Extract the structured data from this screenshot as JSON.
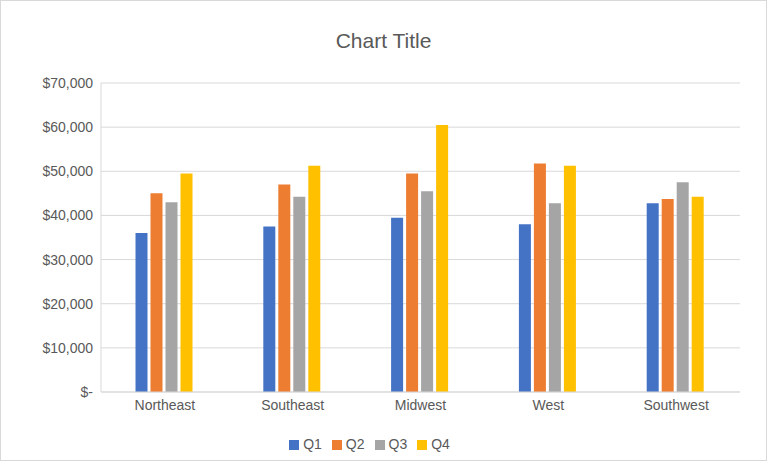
{
  "chart_data": {
    "type": "bar",
    "title": "Chart Title",
    "categories": [
      "Northeast",
      "Southeast",
      "Midwest",
      "West",
      "Southwest"
    ],
    "series": [
      {
        "name": "Q1",
        "color": "#4472c4",
        "values": [
          36000,
          37500,
          39500,
          38000,
          42750
        ]
      },
      {
        "name": "Q2",
        "color": "#ed7d31",
        "values": [
          45000,
          47000,
          49500,
          51750,
          43750
        ]
      },
      {
        "name": "Q3",
        "color": "#a5a5a5",
        "values": [
          43000,
          44250,
          45500,
          42750,
          47500
        ]
      },
      {
        "name": "Q4",
        "color": "#ffc000",
        "values": [
          49500,
          51250,
          60500,
          51250,
          44250
        ]
      }
    ],
    "ylim": [
      0,
      70000
    ],
    "yticks": [
      {
        "value": 0,
        "label": "$-"
      },
      {
        "value": 10000,
        "label": "$10,000"
      },
      {
        "value": 20000,
        "label": "$20,000"
      },
      {
        "value": 30000,
        "label": "$30,000"
      },
      {
        "value": 40000,
        "label": "$40,000"
      },
      {
        "value": 50000,
        "label": "$50,000"
      },
      {
        "value": 60000,
        "label": "$60,000"
      },
      {
        "value": 70000,
        "label": "$70,000"
      }
    ],
    "grid": true,
    "legend": "bottom"
  }
}
